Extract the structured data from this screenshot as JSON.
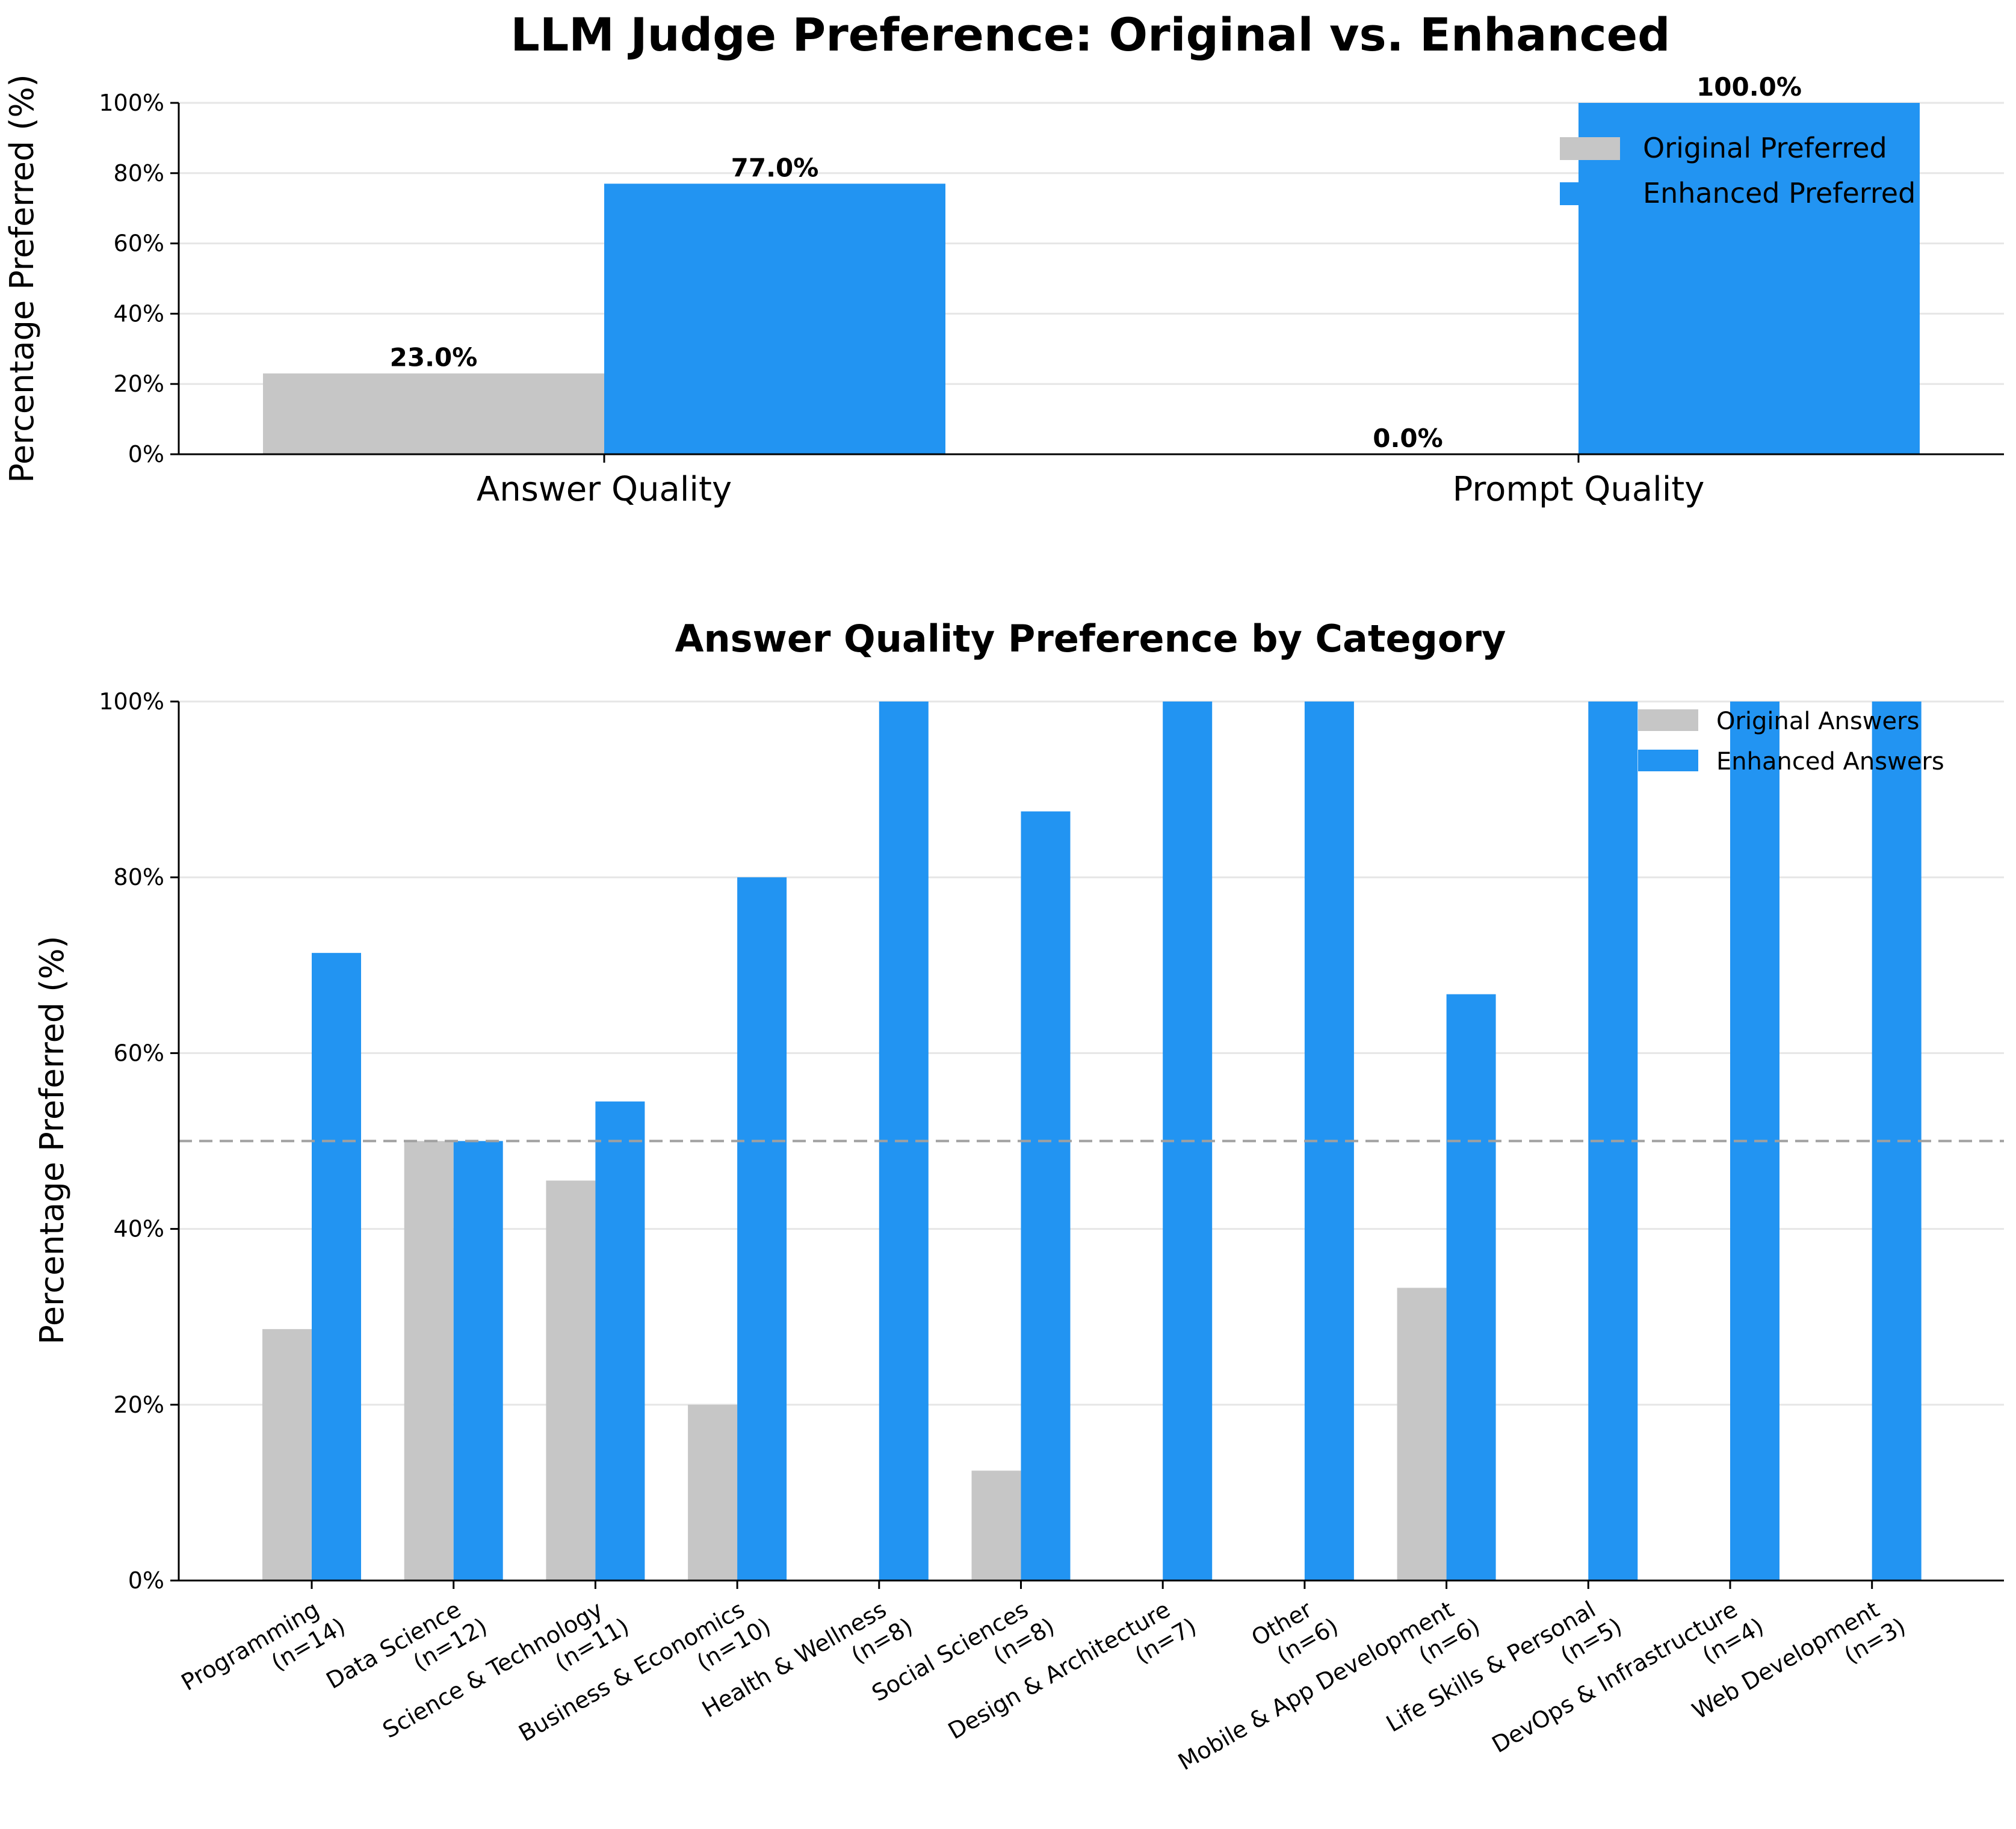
{
  "colors": {
    "original": "#c6c6c6",
    "enhanced": "#2294f2",
    "reference_line": "#a0a0a0",
    "grid": "#e6e6e6"
  },
  "chart_data": [
    {
      "type": "bar",
      "title": "LLM Judge Preference: Original vs. Enhanced",
      "xlabel": "",
      "ylabel": "Percentage Preferred (%)",
      "ylim": [
        0,
        100
      ],
      "yticks": [
        "0%",
        "20%",
        "40%",
        "60%",
        "80%",
        "100%"
      ],
      "categories": [
        "Answer Quality",
        "Prompt Quality"
      ],
      "series": [
        {
          "name": "Original Preferred",
          "values": [
            23.0,
            0.0
          ]
        },
        {
          "name": "Enhanced Preferred",
          "values": [
            77.0,
            100.0
          ]
        }
      ],
      "data_labels": [
        "23.0%",
        "77.0%",
        "0.0%",
        "100.0%"
      ],
      "grid": "y",
      "legend": "top-right"
    },
    {
      "type": "bar",
      "title": "Answer Quality Preference by Category",
      "xlabel": "",
      "ylabel": "Percentage Preferred (%)",
      "ylim": [
        0,
        100
      ],
      "yticks": [
        "0%",
        "20%",
        "40%",
        "60%",
        "80%",
        "100%"
      ],
      "categories": [
        [
          "Programming",
          "(n=14)"
        ],
        [
          "Data Science",
          "(n=12)"
        ],
        [
          "Science & Technology",
          "(n=11)"
        ],
        [
          "Business & Economics",
          "(n=10)"
        ],
        [
          "Health & Wellness",
          "(n=8)"
        ],
        [
          "Social Sciences",
          "(n=8)"
        ],
        [
          "Design & Architecture",
          "(n=7)"
        ],
        [
          "Other",
          "(n=6)"
        ],
        [
          "Mobile & App Development",
          "(n=6)"
        ],
        [
          "Life Skills & Personal",
          "(n=5)"
        ],
        [
          "DevOps & Infrastructure",
          "(n=4)"
        ],
        [
          "Web Development",
          "(n=3)"
        ]
      ],
      "series": [
        {
          "name": "Original Answers",
          "values": [
            28.6,
            50.0,
            45.5,
            20.0,
            0.0,
            12.5,
            0.0,
            0.0,
            33.3,
            0.0,
            0.0,
            0.0
          ]
        },
        {
          "name": "Enhanced Answers",
          "values": [
            71.4,
            50.0,
            54.5,
            80.0,
            100.0,
            87.5,
            100.0,
            100.0,
            66.7,
            100.0,
            100.0,
            100.0
          ]
        }
      ],
      "reference_line": 50,
      "grid": "y",
      "legend": "top-right"
    }
  ]
}
